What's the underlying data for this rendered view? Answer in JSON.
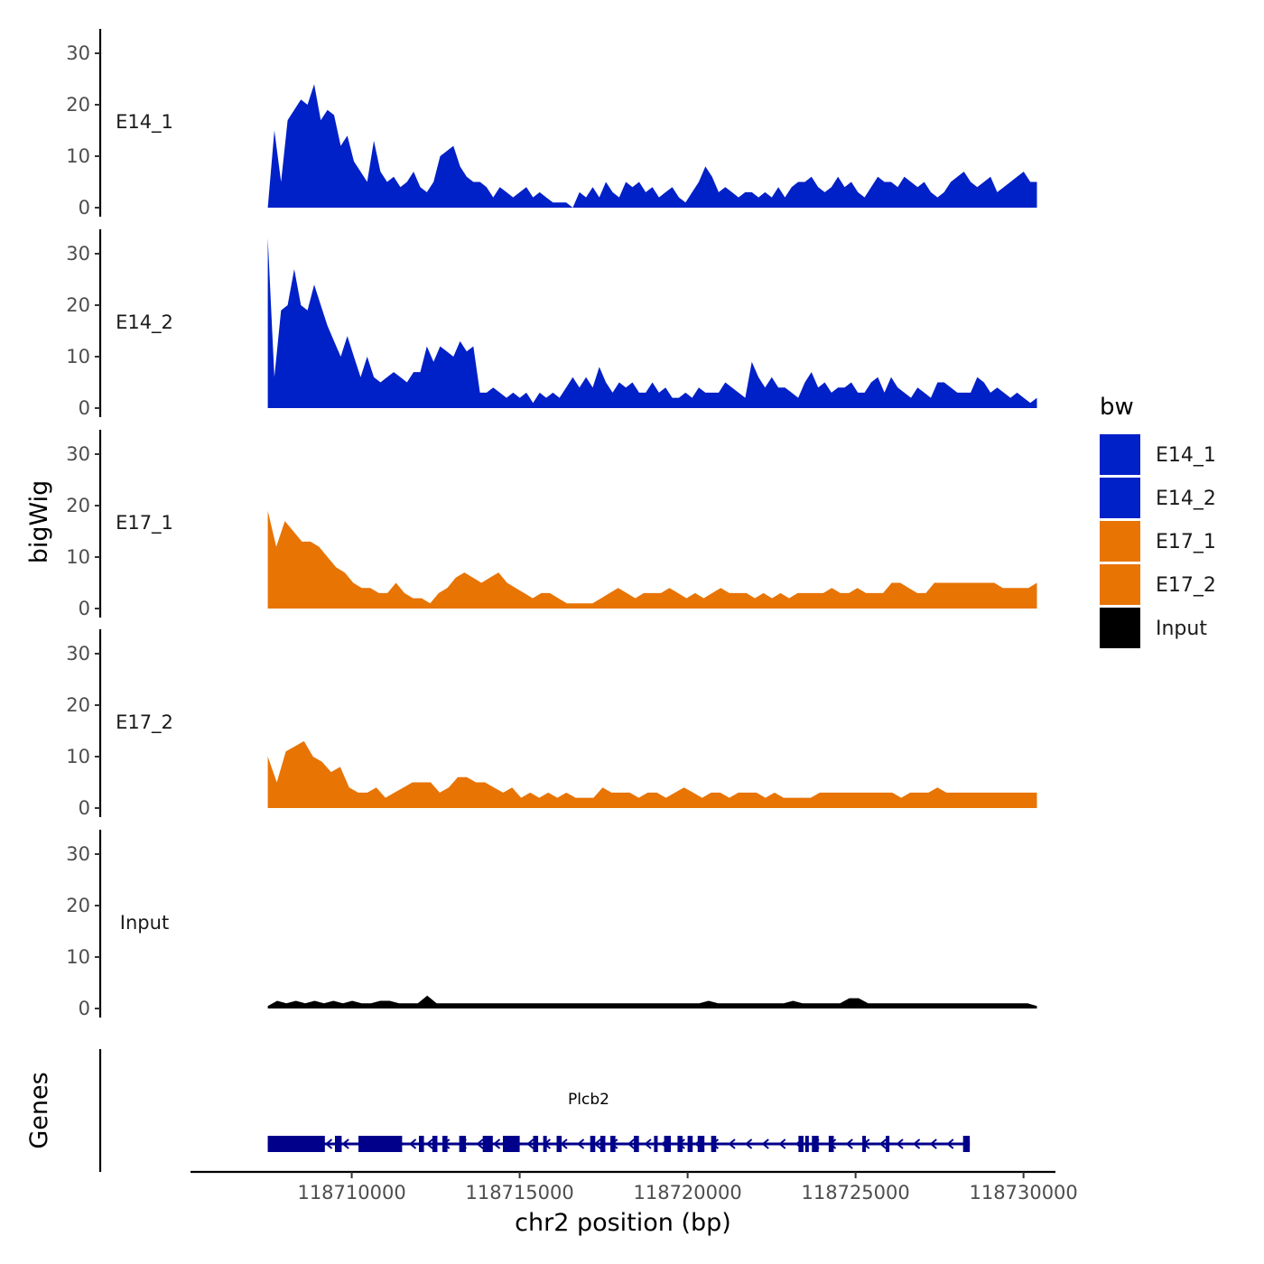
{
  "chart_data": {
    "type": "area",
    "ylabel": "bigWig",
    "xlabel": "chr2 position (bp)",
    "ylim": [
      0,
      33
    ],
    "y_ticks": [
      0,
      10,
      20,
      30
    ],
    "x_range": [
      118707500,
      118730400
    ],
    "x_axis_limits": [
      118705200,
      118730950
    ],
    "x_ticks": [
      118710000,
      118715000,
      118720000,
      118725000,
      118730000
    ],
    "x_tick_labels": [
      "118710000",
      "118715000",
      "118720000",
      "118725000",
      "118730000"
    ],
    "legend": {
      "title": "bw",
      "position": "right",
      "entries": [
        {
          "name": "E14_1",
          "color": "#0020c8"
        },
        {
          "name": "E14_2",
          "color": "#0020c8"
        },
        {
          "name": "E17_1",
          "color": "#e87404"
        },
        {
          "name": "E17_2",
          "color": "#e87404"
        },
        {
          "name": "Input",
          "color": "#000000"
        }
      ]
    },
    "series": [
      {
        "name": "E14_1",
        "color": "#0020c8",
        "values": [
          0,
          15,
          5,
          17,
          19,
          21,
          20,
          24,
          17,
          19,
          18,
          12,
          14,
          9,
          7,
          5,
          13,
          7,
          5,
          6,
          4,
          5,
          7,
          4,
          3,
          5,
          10,
          11,
          12,
          8,
          6,
          5,
          5,
          4,
          2,
          4,
          3,
          2,
          3,
          4,
          2,
          3,
          2,
          1,
          1,
          1,
          0,
          3,
          2,
          4,
          2,
          5,
          3,
          2,
          5,
          4,
          5,
          3,
          4,
          2,
          3,
          4,
          2,
          1,
          3,
          5,
          8,
          6,
          3,
          4,
          3,
          2,
          3,
          3,
          2,
          3,
          2,
          4,
          2,
          4,
          5,
          5,
          6,
          4,
          3,
          4,
          6,
          4,
          5,
          3,
          2,
          4,
          6,
          5,
          5,
          4,
          6,
          5,
          4,
          5,
          3,
          2,
          3,
          5,
          6,
          7,
          5,
          4,
          5,
          6,
          3,
          4,
          5,
          6,
          7,
          5,
          5
        ]
      },
      {
        "name": "E14_2",
        "color": "#0020c8",
        "values": [
          33,
          6,
          19,
          20,
          27,
          20,
          19,
          24,
          20,
          16,
          13,
          10,
          14,
          10,
          6,
          10,
          6,
          5,
          6,
          7,
          6,
          5,
          7,
          7,
          12,
          9,
          12,
          11,
          10,
          13,
          11,
          12,
          3,
          3,
          4,
          3,
          2,
          3,
          2,
          3,
          1,
          3,
          2,
          3,
          2,
          4,
          6,
          4,
          6,
          4,
          8,
          5,
          3,
          5,
          4,
          5,
          3,
          3,
          5,
          3,
          4,
          2,
          2,
          3,
          2,
          4,
          3,
          3,
          3,
          5,
          4,
          3,
          2,
          9,
          6,
          4,
          6,
          4,
          4,
          3,
          2,
          5,
          7,
          4,
          5,
          3,
          4,
          4,
          5,
          3,
          3,
          5,
          6,
          3,
          6,
          4,
          3,
          2,
          4,
          3,
          2,
          5,
          5,
          4,
          3,
          3,
          3,
          6,
          5,
          3,
          4,
          3,
          2,
          3,
          2,
          1,
          2
        ]
      },
      {
        "name": "E17_1",
        "color": "#e87404",
        "values": [
          19,
          12,
          17,
          15,
          13,
          13,
          12,
          10,
          8,
          7,
          5,
          4,
          4,
          3,
          3,
          5,
          3,
          2,
          2,
          1,
          3,
          4,
          6,
          7,
          6,
          5,
          6,
          7,
          5,
          4,
          3,
          2,
          3,
          3,
          2,
          1,
          1,
          1,
          1,
          2,
          3,
          4,
          3,
          2,
          3,
          3,
          3,
          4,
          3,
          2,
          3,
          2,
          3,
          4,
          3,
          3,
          3,
          2,
          3,
          2,
          3,
          2,
          3,
          3,
          3,
          3,
          4,
          3,
          3,
          4,
          3,
          3,
          3,
          5,
          5,
          4,
          3,
          3,
          5,
          5,
          5,
          5,
          5,
          5,
          5,
          5,
          4,
          4,
          4,
          4,
          5
        ]
      },
      {
        "name": "E17_2",
        "color": "#e87404",
        "values": [
          10,
          5,
          11,
          12,
          13,
          10,
          9,
          7,
          8,
          4,
          3,
          3,
          4,
          2,
          3,
          4,
          5,
          5,
          5,
          3,
          4,
          6,
          6,
          5,
          5,
          4,
          3,
          4,
          2,
          3,
          2,
          3,
          2,
          3,
          2,
          2,
          2,
          4,
          3,
          3,
          3,
          2,
          3,
          3,
          2,
          3,
          4,
          3,
          2,
          3,
          3,
          2,
          3,
          3,
          3,
          2,
          3,
          2,
          2,
          2,
          2,
          3,
          3,
          3,
          3,
          3,
          3,
          3,
          3,
          3,
          2,
          3,
          3,
          3,
          4,
          3,
          3,
          3,
          3,
          3,
          3,
          3,
          3,
          3,
          3,
          3
        ]
      },
      {
        "name": "Input",
        "color": "#000000",
        "values": [
          0.5,
          1.5,
          1,
          1.5,
          1,
          1.5,
          1,
          1.5,
          1,
          1.5,
          1,
          1,
          1.5,
          1.5,
          1,
          1,
          1,
          2.5,
          1,
          1,
          1,
          1,
          1,
          1,
          1,
          1,
          1,
          1,
          1,
          1,
          1,
          1,
          1,
          1,
          1,
          1,
          1,
          1,
          1,
          1,
          1,
          1,
          1,
          1,
          1,
          1,
          1,
          1.5,
          1,
          1,
          1,
          1,
          1,
          1,
          1,
          1,
          1.5,
          1,
          1,
          1,
          1,
          1,
          2,
          2,
          1,
          1,
          1,
          1,
          1,
          1,
          1,
          1,
          1,
          1,
          1,
          1,
          1,
          1,
          1,
          1,
          1,
          1,
          0.5
        ]
      }
    ],
    "genes": {
      "title": "Genes",
      "label": "Plcb2",
      "color": "#00008b",
      "start": 118707500,
      "end": 118728400,
      "strand": "-",
      "exons": [
        [
          118707500,
          118709200
        ],
        [
          118709500,
          118709700
        ],
        [
          118710200,
          118711500
        ],
        [
          118712000,
          118712150
        ],
        [
          118712400,
          118712550
        ],
        [
          118712700,
          118712850
        ],
        [
          118713200,
          118713400
        ],
        [
          118713900,
          118714200
        ],
        [
          118714500,
          118715000
        ],
        [
          118715400,
          118715550
        ],
        [
          118715700,
          118715800
        ],
        [
          118716100,
          118716250
        ],
        [
          118717100,
          118717250
        ],
        [
          118717400,
          118717550
        ],
        [
          118717700,
          118717850
        ],
        [
          118718400,
          118718550
        ],
        [
          118719000,
          118719100
        ],
        [
          118719300,
          118719500
        ],
        [
          118719700,
          118719850
        ],
        [
          118720000,
          118720150
        ],
        [
          118720300,
          118720500
        ],
        [
          118720700,
          118720850
        ],
        [
          118723300,
          118723450
        ],
        [
          118723500,
          118723600
        ],
        [
          118723700,
          118723900
        ],
        [
          118724200,
          118724350
        ],
        [
          118725200,
          118725300
        ],
        [
          118725900,
          118726000
        ],
        [
          118728200,
          118728400
        ]
      ]
    }
  }
}
